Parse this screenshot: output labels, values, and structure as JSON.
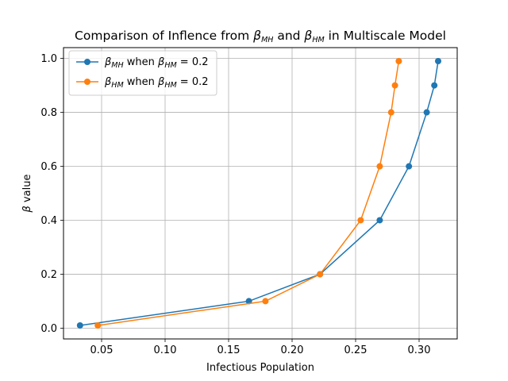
{
  "chart_data": {
    "type": "line",
    "title": "Comparison of Inflence from βMH and βHM in Multiscale Model",
    "title_parts": {
      "prefix": "Comparison of Inflence from ",
      "sym1": "β",
      "sub1": "MH",
      "mid": " and ",
      "sym2": "β",
      "sub2": "HM",
      "suffix": " in Multiscale Model"
    },
    "xlabel": "Infectious Population",
    "ylabel": "β value",
    "ylabel_parts": {
      "sym": "β",
      "rest": " value"
    },
    "xlim": [
      0.02,
      0.33
    ],
    "ylim": [
      -0.04,
      1.04
    ],
    "xticks": [
      0.05,
      0.1,
      0.15,
      0.2,
      0.25,
      0.3
    ],
    "xtick_labels": [
      "0.05",
      "0.10",
      "0.15",
      "0.20",
      "0.25",
      "0.30"
    ],
    "yticks": [
      0.0,
      0.2,
      0.4,
      0.6,
      0.8,
      1.0
    ],
    "ytick_labels": [
      "0.0",
      "0.2",
      "0.4",
      "0.6",
      "0.8",
      "1.0"
    ],
    "grid": true,
    "legend_position": "top-left",
    "series": [
      {
        "name": "βMH when βHM = 0.2",
        "label_parts": {
          "sym": "β",
          "sub": "MH",
          "mid": " when ",
          "sym2": "β",
          "sub2": "HM",
          "suffix": " = 0.2"
        },
        "color": "#1f77b4",
        "x": [
          0.033,
          0.166,
          0.222,
          0.269,
          0.292,
          0.306,
          0.312,
          0.315
        ],
        "y": [
          0.01,
          0.1,
          0.2,
          0.4,
          0.6,
          0.8,
          0.9,
          0.99
        ]
      },
      {
        "name": "βHM when βHM = 0.2",
        "label_parts": {
          "sym": "β",
          "sub": "HM",
          "mid": " when ",
          "sym2": "β",
          "sub2": "HM",
          "suffix": " = 0.2"
        },
        "color": "#ff7f0e",
        "x": [
          0.047,
          0.179,
          0.222,
          0.254,
          0.269,
          0.278,
          0.281,
          0.284
        ],
        "y": [
          0.01,
          0.1,
          0.2,
          0.4,
          0.6,
          0.8,
          0.9,
          0.99
        ]
      }
    ]
  }
}
